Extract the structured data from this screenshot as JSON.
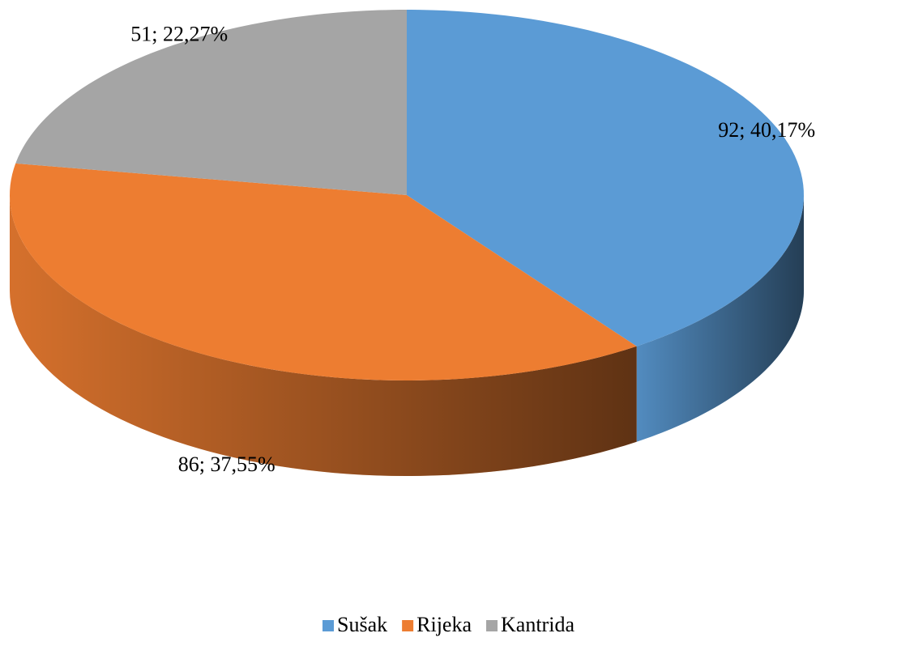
{
  "chart_data": {
    "type": "pie3d",
    "categories": [
      "Sušak",
      "Rijeka",
      "Kantrida"
    ],
    "values": [
      92,
      86,
      51
    ],
    "value_labels": [
      "92; 40,17%",
      "86; 37,55%",
      "51; 22,27%"
    ],
    "colors": [
      "#5b9bd5",
      "#ed7d31",
      "#a5a5a5"
    ],
    "legend": "bottom"
  }
}
